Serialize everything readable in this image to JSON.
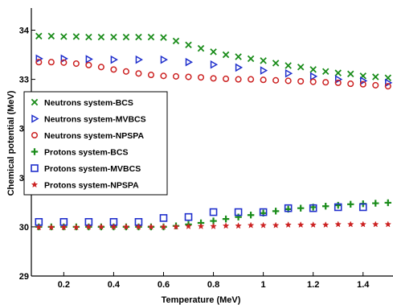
{
  "chart_data": {
    "type": "scatter",
    "title": "",
    "xlabel": "Temperature (MeV)",
    "ylabel": "Chemical potential (MeV)",
    "xlim": [
      0.07,
      1.52
    ],
    "ylim": [
      29,
      34.45
    ],
    "x_ticks": [
      "0.2",
      "0.4",
      "0.6",
      "0.8",
      "1",
      "1.2",
      "1.4"
    ],
    "y_ticks": [
      "29",
      "30",
      "31",
      "32",
      "33",
      "34"
    ],
    "grid": false,
    "legend_position": "middle-left",
    "series": [
      {
        "name": "Neutrons system-BCS",
        "marker": "x",
        "color": "#1a8c1a",
        "x": [
          0.1,
          0.15,
          0.2,
          0.25,
          0.3,
          0.35,
          0.4,
          0.45,
          0.5,
          0.55,
          0.6,
          0.65,
          0.7,
          0.75,
          0.8,
          0.85,
          0.9,
          0.95,
          1.0,
          1.05,
          1.1,
          1.15,
          1.2,
          1.25,
          1.3,
          1.35,
          1.4,
          1.45,
          1.5
        ],
        "y": [
          33.88,
          33.88,
          33.87,
          33.87,
          33.86,
          33.86,
          33.86,
          33.86,
          33.86,
          33.86,
          33.85,
          33.78,
          33.7,
          33.63,
          33.56,
          33.5,
          33.46,
          33.42,
          33.38,
          33.33,
          33.28,
          33.25,
          33.2,
          33.16,
          33.13,
          33.11,
          33.07,
          33.05,
          33.03
        ]
      },
      {
        "name": "Neutrons system-MVBCS",
        "marker": "triangle-right",
        "color": "#1f2fcc",
        "x": [
          0.1,
          0.2,
          0.3,
          0.4,
          0.5,
          0.6,
          0.7,
          0.8,
          0.9,
          1.0,
          1.1,
          1.2,
          1.3,
          1.4,
          1.5
        ],
        "y": [
          33.42,
          33.42,
          33.41,
          33.4,
          33.4,
          33.4,
          33.35,
          33.3,
          33.24,
          33.18,
          33.12,
          33.06,
          33.0,
          32.97,
          32.93
        ]
      },
      {
        "name": "Neutrons system-NPSPA",
        "marker": "circle",
        "color": "#cc2222",
        "x": [
          0.1,
          0.15,
          0.2,
          0.25,
          0.3,
          0.35,
          0.4,
          0.45,
          0.5,
          0.55,
          0.6,
          0.65,
          0.7,
          0.75,
          0.8,
          0.85,
          0.9,
          0.95,
          1.0,
          1.05,
          1.1,
          1.15,
          1.2,
          1.25,
          1.3,
          1.35,
          1.4,
          1.45,
          1.5
        ],
        "y": [
          33.35,
          33.35,
          33.34,
          33.32,
          33.29,
          33.25,
          33.2,
          33.16,
          33.12,
          33.09,
          33.07,
          33.06,
          33.05,
          33.04,
          33.02,
          33.01,
          33.0,
          33.0,
          32.99,
          32.98,
          32.97,
          32.96,
          32.95,
          32.94,
          32.93,
          32.91,
          32.9,
          32.88,
          32.86
        ]
      },
      {
        "name": "Protons system-BCS",
        "marker": "plus",
        "color": "#1a8c1a",
        "x": [
          0.1,
          0.15,
          0.2,
          0.25,
          0.3,
          0.35,
          0.4,
          0.45,
          0.5,
          0.55,
          0.6,
          0.65,
          0.7,
          0.75,
          0.8,
          0.85,
          0.9,
          0.95,
          1.0,
          1.05,
          1.1,
          1.15,
          1.2,
          1.25,
          1.3,
          1.35,
          1.4,
          1.45,
          1.5
        ],
        "y": [
          30.0,
          30.0,
          30.0,
          30.0,
          30.0,
          30.0,
          30.0,
          30.0,
          30.0,
          30.0,
          30.0,
          30.02,
          30.05,
          30.08,
          30.12,
          30.16,
          30.2,
          30.24,
          30.28,
          30.32,
          30.36,
          30.38,
          30.4,
          30.42,
          30.44,
          30.46,
          30.47,
          30.48,
          30.49
        ]
      },
      {
        "name": "Protons system-MVBCS",
        "marker": "square-open",
        "color": "#1f2fcc",
        "x": [
          0.1,
          0.2,
          0.3,
          0.4,
          0.5,
          0.6,
          0.7,
          0.8,
          0.9,
          1.0,
          1.1,
          1.2,
          1.3,
          1.4
        ],
        "y": [
          30.1,
          30.1,
          30.1,
          30.1,
          30.1,
          30.18,
          30.2,
          30.3,
          30.3,
          30.3,
          30.38,
          30.38,
          30.4,
          30.4
        ]
      },
      {
        "name": "Protons system-NPSPA",
        "marker": "star",
        "color": "#cc2222",
        "x": [
          0.1,
          0.15,
          0.2,
          0.25,
          0.3,
          0.35,
          0.4,
          0.45,
          0.5,
          0.55,
          0.6,
          0.65,
          0.7,
          0.75,
          0.8,
          0.85,
          0.9,
          0.95,
          1.0,
          1.05,
          1.1,
          1.15,
          1.2,
          1.25,
          1.3,
          1.35,
          1.4,
          1.45,
          1.5
        ],
        "y": [
          29.99,
          29.99,
          29.99,
          29.99,
          30.0,
          30.0,
          30.0,
          30.0,
          30.0,
          30.0,
          30.0,
          30.0,
          30.01,
          30.01,
          30.01,
          30.02,
          30.02,
          30.03,
          30.03,
          30.03,
          30.04,
          30.04,
          30.04,
          30.04,
          30.05,
          30.05,
          30.05,
          30.05,
          30.05
        ]
      }
    ]
  }
}
